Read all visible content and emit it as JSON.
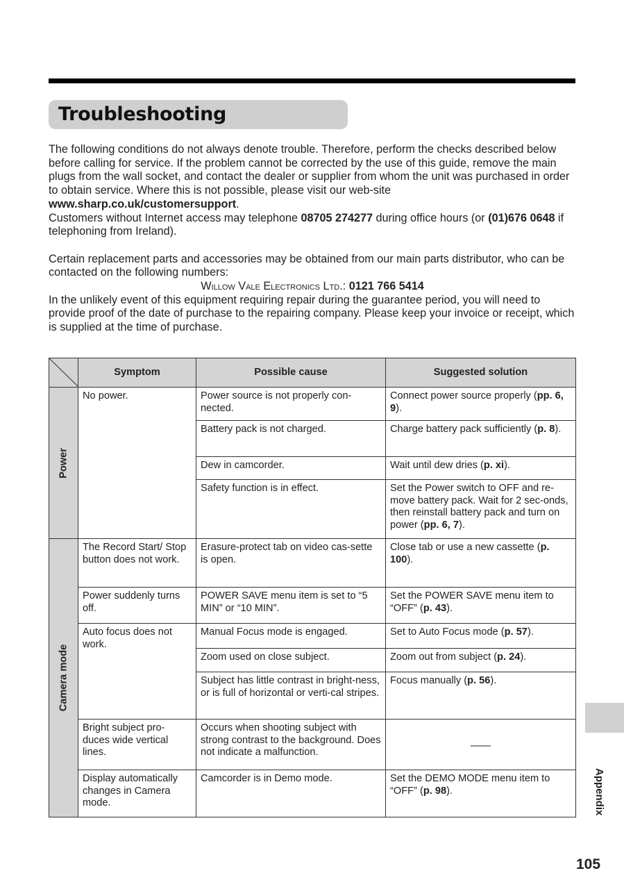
{
  "title": "Troubleshooting",
  "intro": [
    [
      {
        "t": "The following conditions do not always denote trouble. Therefore, perform the checks described below before calling for service. If the problem cannot be corrected by the use of this guide, remove the main plugs from the wall socket, and contact the dealer or supplier from whom the unit was purchased in order to obtain service. Where this is not possible, please visit our web-site "
      },
      {
        "t": "www.sharp.co.uk/customersupport",
        "b": true
      },
      {
        "t": "."
      }
    ],
    [
      {
        "t": "Customers without Internet access may telephone "
      },
      {
        "t": "08705 274277",
        "b": true
      },
      {
        "t": " during office hours (or "
      },
      {
        "t": "(01)676 0648",
        "b": true
      },
      {
        "t": " if telephoning from Ireland)."
      }
    ]
  ],
  "parts_text": "Certain replacement parts and accessories may be obtained from our main parts distributor, who can be contacted on the following numbers:",
  "distributor_name": "Willow Vale Electronics Ltd.",
  "distributor_phone": "0121 766 5414",
  "guarantee_text": "In the unlikely event of this equipment requiring repair during the guarantee period, you will need to provide proof of the date of purchase to the repairing company. Please keep your invoice or receipt, which is supplied at the time of purchase.",
  "table": {
    "headers": {
      "symptom": "Symptom",
      "cause": "Possible cause",
      "solution": "Suggested solution"
    },
    "groups": [
      {
        "category": "Power",
        "symptoms": [
          {
            "symptom": "No power.",
            "rows": [
              {
                "cause": "Power source is not properly con-nected.",
                "solution": [
                  {
                    "t": "Connect power source properly ("
                  },
                  {
                    "t": "pp. 6, 9",
                    "b": true
                  },
                  {
                    "t": ")."
                  }
                ]
              },
              {
                "cause": "Battery pack is not charged.",
                "solution": [
                  {
                    "t": "Charge battery pack sufficiently ("
                  },
                  {
                    "t": "p. 8",
                    "b": true
                  },
                  {
                    "t": ")."
                  }
                ]
              },
              {
                "cause": "Dew in camcorder.",
                "solution": [
                  {
                    "t": "Wait until dew dries ("
                  },
                  {
                    "t": "p. xi",
                    "b": true
                  },
                  {
                    "t": ")."
                  }
                ]
              },
              {
                "cause": "Safety function is in effect.",
                "solution": [
                  {
                    "t": "Set the Power switch to OFF and re-move battery pack. Wait for 2 sec-onds, then reinstall battery pack and turn on power ("
                  },
                  {
                    "t": "pp. 6, 7",
                    "b": true
                  },
                  {
                    "t": ")."
                  }
                ]
              }
            ]
          }
        ]
      },
      {
        "category": "Camera mode",
        "symptoms": [
          {
            "symptom": "The Record Start/ Stop button does not work.",
            "rows": [
              {
                "cause": "Erasure-protect tab on video cas-sette is open.",
                "solution": [
                  {
                    "t": "Close tab or use a new cassette ("
                  },
                  {
                    "t": "p. 100",
                    "b": true
                  },
                  {
                    "t": ")."
                  }
                ]
              }
            ]
          },
          {
            "symptom": "Power suddenly turns off.",
            "rows": [
              {
                "cause": "POWER SAVE menu item is set to “5 MIN” or “10 MIN”.",
                "solution": [
                  {
                    "t": "Set the POWER SAVE menu item to “OFF” ("
                  },
                  {
                    "t": "p. 43",
                    "b": true
                  },
                  {
                    "t": ")."
                  }
                ]
              }
            ]
          },
          {
            "symptom": "Auto focus does not work.",
            "rows": [
              {
                "cause": "Manual Focus mode is engaged.",
                "solution": [
                  {
                    "t": "Set to Auto Focus mode ("
                  },
                  {
                    "t": "p. 57",
                    "b": true
                  },
                  {
                    "t": ")."
                  }
                ]
              },
              {
                "cause": "Zoom used on close subject.",
                "solution": [
                  {
                    "t": "Zoom out from subject ("
                  },
                  {
                    "t": "p. 24",
                    "b": true
                  },
                  {
                    "t": ")."
                  }
                ]
              },
              {
                "cause": "Subject has little contrast in bright-ness, or is full of horizontal or verti-cal stripes.",
                "solution": [
                  {
                    "t": "Focus manually ("
                  },
                  {
                    "t": "p. 56",
                    "b": true
                  },
                  {
                    "t": ")."
                  }
                ]
              }
            ]
          },
          {
            "symptom": "Bright subject pro-duces wide vertical lines.",
            "rows": [
              {
                "cause": "Occurs when shooting subject with strong contrast to the background. Does not indicate a malfunction.",
                "solution": [
                  {
                    "t": "——",
                    "dash": true
                  }
                ]
              }
            ]
          },
          {
            "symptom": "Display automatically changes in Camera mode.",
            "rows": [
              {
                "cause": "Camcorder is in Demo mode.",
                "solution": [
                  {
                    "t": "Set the DEMO MODE menu item to “OFF” ("
                  },
                  {
                    "t": "p. 98",
                    "b": true
                  },
                  {
                    "t": ")."
                  }
                ]
              }
            ]
          }
        ]
      }
    ]
  },
  "section_tab": "Appendix",
  "page_number": "105"
}
